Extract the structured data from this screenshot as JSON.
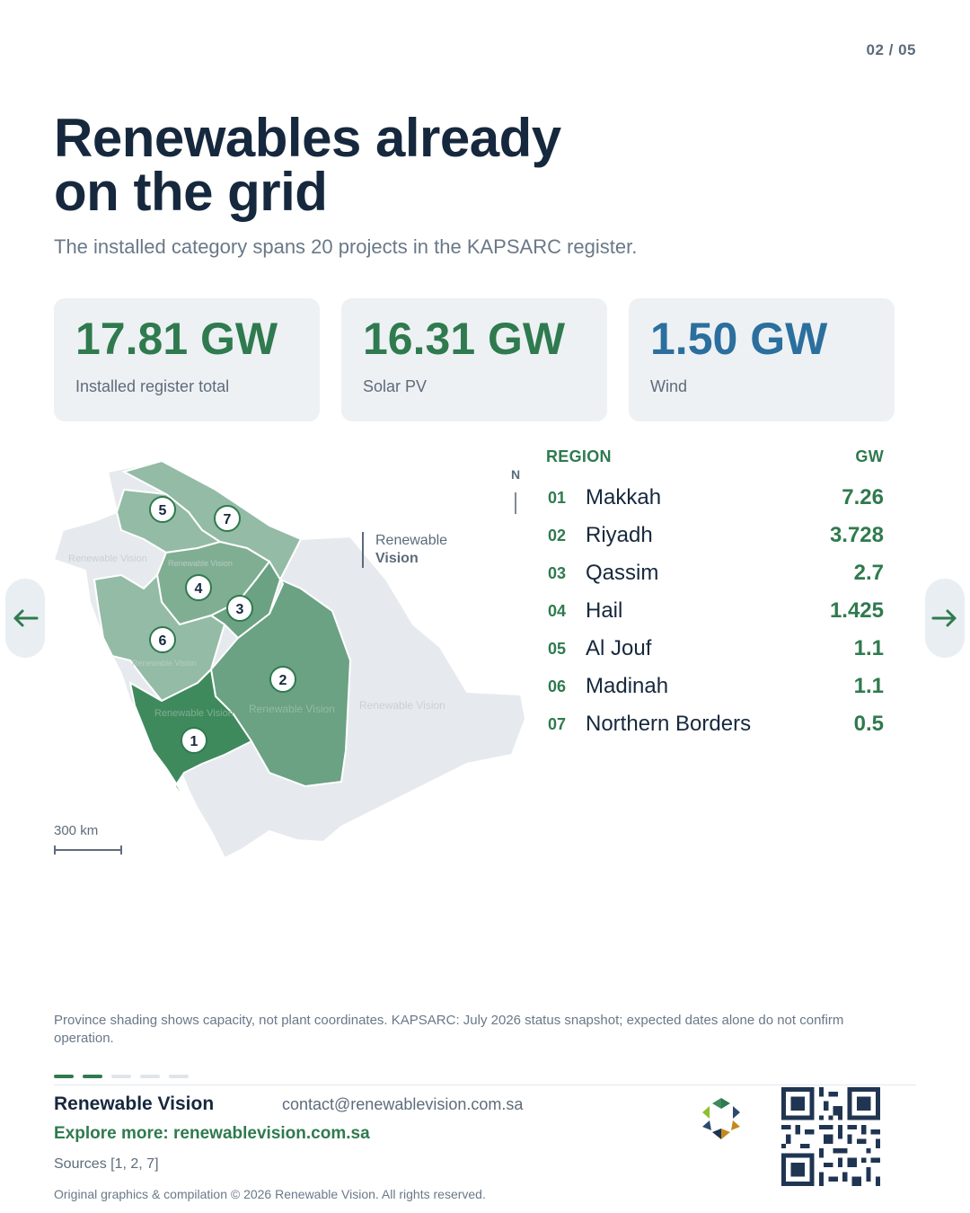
{
  "page": {
    "number": "02 / 05"
  },
  "header": {
    "title_line1": "Renewables already",
    "title_line2": "on the grid",
    "subtitle": "The installed category spans 20 projects in the KAPSARC register."
  },
  "kpis": [
    {
      "value": "17.81 GW",
      "label": "Installed register total",
      "color": "#2f7a4e"
    },
    {
      "value": "16.31 GW",
      "label": "Solar PV",
      "color": "#2f7a4e"
    },
    {
      "value": "1.50 GW",
      "label": "Wind",
      "color": "#2a6f9e"
    }
  ],
  "map": {
    "compass": "N",
    "scale_label": "300 km",
    "brand_line1": "Renewable",
    "brand_line2": "Vision",
    "watermark": "Renewable Vision",
    "markers": [
      "1",
      "2",
      "3",
      "4",
      "5",
      "6",
      "7"
    ]
  },
  "table": {
    "header_region": "REGION",
    "header_gw": "GW",
    "rows": [
      {
        "num": "01",
        "name": "Makkah",
        "gw": "7.26"
      },
      {
        "num": "02",
        "name": "Riyadh",
        "gw": "3.728"
      },
      {
        "num": "03",
        "name": "Qassim",
        "gw": "2.7"
      },
      {
        "num": "04",
        "name": "Hail",
        "gw": "1.425"
      },
      {
        "num": "05",
        "name": "Al Jouf",
        "gw": "1.1"
      },
      {
        "num": "06",
        "name": "Madinah",
        "gw": "1.1"
      },
      {
        "num": "07",
        "name": "Northern Borders",
        "gw": "0.5"
      }
    ]
  },
  "nav": {
    "prev_icon": "arrow-left-icon",
    "next_icon": "arrow-right-icon"
  },
  "footnote": "Province shading shows capacity, not plant coordinates. KAPSARC: July 2026 status snapshot; expected dates alone do not confirm operation.",
  "progress": {
    "total": 5,
    "current": 2
  },
  "footer": {
    "brand": "Renewable Vision",
    "contact": "contact@renewablevision.com.sa",
    "explore": "Explore more: renewablevision.com.sa",
    "sources": "Sources [1, 2, 7]",
    "copyright": "Original graphics & compilation © 2026 Renewable Vision. All rights reserved."
  },
  "colors": {
    "accent_green": "#2f7a4e",
    "accent_blue": "#2a6f9e",
    "dark_navy": "#16283d",
    "shade_high": "#3f8a5d",
    "shade_mid": "#6aa283",
    "shade_low": "#93bba5",
    "land_gray": "#e6eaee"
  }
}
